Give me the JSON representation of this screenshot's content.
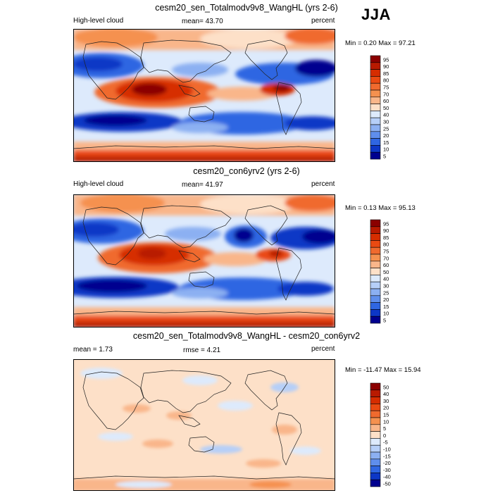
{
  "season": "JJA",
  "panels": [
    {
      "title": "cesm20_sen_Totalmodv9v8_WangHL (yrs 2-6)",
      "left": "High-level cloud",
      "center": "mean=  43.70",
      "right": "percent",
      "minmax": "Min =   0.20 Max =  97.21",
      "levels": [
        "95",
        "90",
        "85",
        "80",
        "75",
        "70",
        "60",
        "50",
        "40",
        "30",
        "25",
        "20",
        "15",
        "10",
        "5"
      ],
      "field": "high-level cloud case"
    },
    {
      "title": "cesm20_con6yrv2 (yrs 2-6)",
      "left": "High-level cloud",
      "center": "mean=  41.97",
      "right": "percent",
      "minmax": "Min =   0.13 Max =  95.13",
      "levels": [
        "95",
        "90",
        "85",
        "80",
        "75",
        "70",
        "60",
        "50",
        "40",
        "30",
        "25",
        "20",
        "15",
        "10",
        "5"
      ],
      "field": "high-level cloud control"
    },
    {
      "title": "cesm20_sen_Totalmodv9v8_WangHL - cesm20_con6yrv2",
      "left": "mean =   1.73",
      "center": "rmse =   4.21",
      "right": "percent",
      "minmax": "Min = -11.47 Max =  15.94",
      "levels": [
        "50",
        "40",
        "30",
        "20",
        "15",
        "10",
        "5",
        "0",
        "-5",
        "-10",
        "-15",
        "-20",
        "-30",
        "-40",
        "-50"
      ],
      "field": "difference"
    }
  ],
  "palettes": {
    "absolute": [
      "#8b0000",
      "#b81a00",
      "#d62d00",
      "#ea4a12",
      "#f06a2e",
      "#f5914f",
      "#f9b68a",
      "#fde0c8",
      "#ddeafc",
      "#b6cff8",
      "#8cb0f2",
      "#5f8eec",
      "#2f66e2",
      "#0d37c6",
      "#00008f"
    ],
    "difference": [
      "#8b0000",
      "#b81a00",
      "#d62d00",
      "#ea4a12",
      "#f06a2e",
      "#f5914f",
      "#f9b68a",
      "#fde0c8",
      "#ddeafc",
      "#b6cff8",
      "#8cb0f2",
      "#5f8eec",
      "#2f66e2",
      "#0d37c6",
      "#00008f"
    ]
  }
}
